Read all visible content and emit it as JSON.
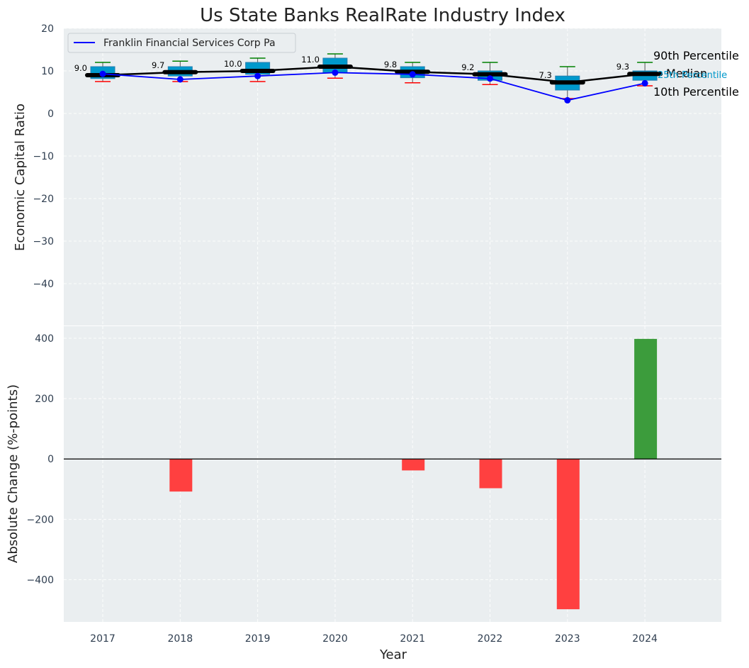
{
  "title": "Us State Banks RealRate Industry Index",
  "colors": {
    "panel_bg": "#eaeef0",
    "box": "#0099cc",
    "box_edge": "#2a7fb0",
    "median": "#000000",
    "series": "#0000ff",
    "whisker_high": "#008000",
    "whisker_low": "#ff0000",
    "bar_neg": "#ff4040",
    "bar_pos": "#3c9c3c",
    "p25_label": "#0099cc"
  },
  "chart_data": [
    {
      "type": "box",
      "ylabel": "Economic Capital Ratio",
      "ylim": [
        -50,
        20
      ],
      "yticks": [
        20,
        10,
        0,
        -10,
        -20,
        -30,
        -40
      ],
      "ytick_labels": [
        "20",
        "10",
        "0",
        "−10",
        "−20",
        "−30",
        "−40"
      ],
      "grid": true,
      "legend": {
        "position": "top-left",
        "entries": [
          "Franklin Financial Services Corp Pa"
        ]
      },
      "categories": [
        "2017",
        "2018",
        "2019",
        "2020",
        "2021",
        "2022",
        "2023",
        "2024"
      ],
      "p10": [
        7.5,
        7.5,
        7.5,
        8.3,
        7.2,
        6.8,
        3.5,
        6.5
      ],
      "p25": [
        8.2,
        8.8,
        9.2,
        9.6,
        8.4,
        7.8,
        5.5,
        7.8
      ],
      "median": [
        9.0,
        9.7,
        10.0,
        11.0,
        9.8,
        9.2,
        7.3,
        9.3
      ],
      "p75": [
        11.0,
        11.0,
        12.0,
        13.0,
        11.0,
        10.0,
        8.8,
        10.0
      ],
      "p90": [
        12.0,
        12.3,
        13.0,
        14.0,
        12.0,
        12.0,
        11.0,
        12.0
      ],
      "median_labels": [
        "9.0",
        "9.7",
        "10.0",
        "11.0",
        "9.8",
        "9.2",
        "7.3",
        "9.3"
      ],
      "series": [
        {
          "name": "Franklin Financial Services Corp Pa",
          "values": [
            9.3,
            8.0,
            8.8,
            9.6,
            9.2,
            8.2,
            3.1,
            7.1
          ]
        }
      ],
      "annotations": [
        "90th Percentile",
        "Median",
        "25th Percentile",
        "10th Percentile"
      ]
    },
    {
      "type": "bar",
      "xlabel": "Year",
      "ylabel": "Absolute Change (%-points)",
      "ylim": [
        -540,
        440
      ],
      "yticks": [
        400,
        200,
        0,
        -200,
        -400
      ],
      "ytick_labels": [
        "400",
        "200",
        "0",
        "−200",
        "−400"
      ],
      "grid": true,
      "categories": [
        "2017",
        "2018",
        "2019",
        "2020",
        "2021",
        "2022",
        "2023",
        "2024"
      ],
      "values": [
        0,
        -108,
        0,
        0,
        -38,
        -97,
        -498,
        398
      ]
    }
  ]
}
